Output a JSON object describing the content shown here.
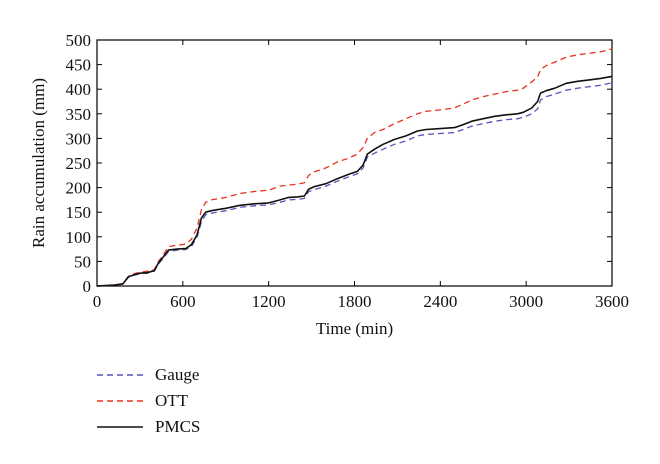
{
  "chart_data": {
    "type": "line",
    "xlabel": "Time (min)",
    "ylabel": "Rain accumulation (mm)",
    "xlim": [
      0,
      3600
    ],
    "ylim": [
      0,
      500
    ],
    "xticks": [
      0,
      600,
      1200,
      1800,
      2400,
      3000,
      3600
    ],
    "yticks": [
      0,
      50,
      100,
      150,
      200,
      250,
      300,
      350,
      400,
      450,
      500
    ],
    "grid": false,
    "legend_position": "bottom-left, below plot",
    "series": [
      {
        "name": "Gauge",
        "color": "#5555bb",
        "dash": "dashed",
        "x": [
          0,
          120,
          180,
          220,
          260,
          300,
          350,
          400,
          430,
          460,
          500,
          560,
          620,
          660,
          700,
          730,
          760,
          800,
          840,
          900,
          1000,
          1100,
          1200,
          1280,
          1340,
          1400,
          1450,
          1480,
          1520,
          1600,
          1680,
          1760,
          1820,
          1860,
          1890,
          1940,
          2000,
          2080,
          2160,
          2240,
          2300,
          2400,
          2500,
          2560,
          2620,
          2700,
          2780,
          2860,
          2940,
          2980,
          3040,
          3080,
          3100,
          3140,
          3200,
          3280,
          3360,
          3440,
          3520,
          3600
        ],
        "y": [
          0,
          2,
          4,
          18,
          22,
          25,
          26,
          30,
          45,
          55,
          70,
          73,
          74,
          80,
          100,
          130,
          145,
          148,
          150,
          153,
          160,
          163,
          165,
          170,
          175,
          176,
          178,
          192,
          196,
          203,
          213,
          222,
          228,
          240,
          262,
          270,
          278,
          288,
          295,
          305,
          308,
          310,
          312,
          318,
          325,
          330,
          335,
          338,
          340,
          343,
          350,
          360,
          378,
          385,
          390,
          398,
          402,
          405,
          408,
          413
        ]
      },
      {
        "name": "OTT",
        "color": "#e8321e",
        "dash": "dashed",
        "x": [
          0,
          120,
          180,
          220,
          260,
          300,
          350,
          400,
          430,
          460,
          500,
          560,
          620,
          660,
          700,
          730,
          760,
          800,
          840,
          900,
          1000,
          1100,
          1200,
          1280,
          1340,
          1400,
          1450,
          1480,
          1520,
          1600,
          1680,
          1760,
          1820,
          1860,
          1890,
          1940,
          2000,
          2080,
          2160,
          2240,
          2300,
          2400,
          2500,
          2560,
          2620,
          2700,
          2780,
          2860,
          2940,
          2980,
          3040,
          3080,
          3100,
          3140,
          3200,
          3280,
          3360,
          3440,
          3520,
          3600
        ],
        "y": [
          0,
          2,
          5,
          20,
          25,
          28,
          30,
          33,
          50,
          62,
          80,
          83,
          85,
          95,
          118,
          155,
          170,
          175,
          177,
          180,
          188,
          192,
          195,
          203,
          205,
          207,
          210,
          225,
          232,
          240,
          252,
          260,
          268,
          282,
          300,
          312,
          318,
          330,
          340,
          350,
          355,
          358,
          362,
          370,
          378,
          385,
          390,
          395,
          398,
          402,
          415,
          425,
          440,
          448,
          455,
          465,
          470,
          473,
          476,
          482
        ]
      },
      {
        "name": "PMCS",
        "color": "#111111",
        "dash": "solid",
        "x": [
          0,
          120,
          180,
          220,
          260,
          300,
          350,
          400,
          430,
          460,
          500,
          560,
          620,
          660,
          700,
          730,
          760,
          800,
          840,
          900,
          1000,
          1100,
          1200,
          1280,
          1340,
          1400,
          1450,
          1480,
          1520,
          1600,
          1680,
          1760,
          1820,
          1860,
          1890,
          1940,
          2000,
          2080,
          2160,
          2240,
          2300,
          2400,
          2500,
          2560,
          2620,
          2700,
          2780,
          2860,
          2940,
          2980,
          3040,
          3080,
          3100,
          3140,
          3200,
          3280,
          3360,
          3440,
          3520,
          3600
        ],
        "y": [
          0,
          2,
          4,
          19,
          23,
          26,
          27,
          31,
          47,
          58,
          73,
          75,
          76,
          84,
          104,
          138,
          150,
          153,
          155,
          158,
          164,
          167,
          169,
          175,
          180,
          181,
          183,
          197,
          202,
          208,
          218,
          227,
          233,
          246,
          268,
          278,
          288,
          298,
          305,
          315,
          318,
          320,
          322,
          328,
          335,
          340,
          345,
          348,
          350,
          353,
          362,
          375,
          392,
          397,
          402,
          412,
          416,
          419,
          422,
          426
        ]
      }
    ]
  }
}
